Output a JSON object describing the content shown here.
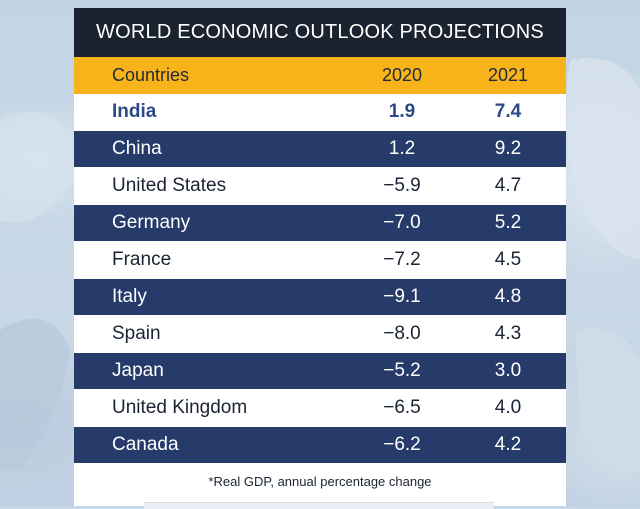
{
  "chart_data": {
    "type": "table",
    "title": "WORLD ECONOMIC OUTLOOK PROJECTIONS",
    "columns": [
      "Countries",
      "2020",
      "2021"
    ],
    "rows": [
      {
        "country": "India",
        "y2020": "1.9",
        "y2021": "7.4"
      },
      {
        "country": "China",
        "y2020": "1.2",
        "y2021": "9.2"
      },
      {
        "country": "United States",
        "y2020": "−5.9",
        "y2021": "4.7"
      },
      {
        "country": "Germany",
        "y2020": "−7.0",
        "y2021": "5.2"
      },
      {
        "country": "France",
        "y2020": "−7.2",
        "y2021": "4.5"
      },
      {
        "country": "Italy",
        "y2020": "−9.1",
        "y2021": "4.8"
      },
      {
        "country": "Spain",
        "y2020": "−8.0",
        "y2021": "4.3"
      },
      {
        "country": "Japan",
        "y2020": "−5.2",
        "y2021": "3.0"
      },
      {
        "country": "United Kingdom",
        "y2020": "−6.5",
        "y2021": "4.0"
      },
      {
        "country": "Canada",
        "y2020": "−6.2",
        "y2021": "4.2"
      }
    ],
    "footnote": "*Real GDP, annual percentage change"
  },
  "colors": {
    "title_bg": "#1c2330",
    "header_bg": "#f7b319",
    "dark_row": "#263b6a",
    "light_row": "#ffffff",
    "highlight_text": "#2c4a86"
  }
}
